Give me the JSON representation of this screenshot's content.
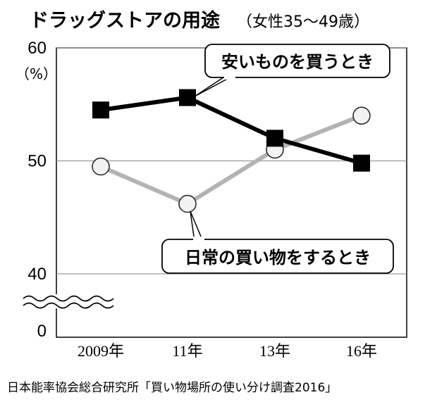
{
  "header": {
    "title": "ドラッグストアの用途",
    "subtitle": "（女性35〜49歳）"
  },
  "source": "日本能率協会総合研究所「買い物場所の使い分け調査2016」",
  "chart_data": {
    "type": "line",
    "categories": [
      "2009年",
      "11年",
      "13年",
      "16年"
    ],
    "ylabel": "（%）",
    "ylim": [
      40,
      60
    ],
    "y_ticks": [
      "60",
      "50",
      "40",
      "0"
    ],
    "axis_break": true,
    "grid": true,
    "series": [
      {
        "name": "安いものを買うとき",
        "values": [
          54.5,
          55.6,
          52.0,
          49.8
        ],
        "color": "#000000",
        "marker": "square"
      },
      {
        "name": "日常の買い物をするとき",
        "values": [
          49.5,
          46.2,
          51.0,
          54.0
        ],
        "color": "#b3b3b3",
        "marker": "circle"
      }
    ]
  }
}
